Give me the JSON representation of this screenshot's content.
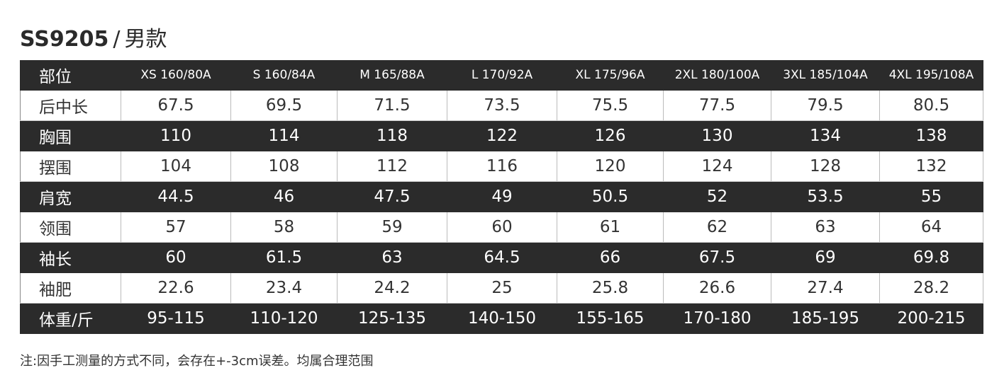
{
  "title": {
    "code": "SS9205",
    "separator": "/",
    "category": "男款"
  },
  "table": {
    "headers": [
      "部位",
      "XS 160/80A",
      "S 160/84A",
      "M  165/88A",
      "L 170/92A",
      "XL 175/96A",
      "2XL 180/100A",
      "3XL 185/104A",
      "4XL 195/108A"
    ],
    "rows": [
      {
        "label": "后中长",
        "dark": false,
        "values": [
          "67.5",
          "69.5",
          "71.5",
          "73.5",
          "75.5",
          "77.5",
          "79.5",
          "80.5"
        ]
      },
      {
        "label": "胸围",
        "dark": true,
        "values": [
          "110",
          "114",
          "118",
          "122",
          "126",
          "130",
          "134",
          "138"
        ]
      },
      {
        "label": "摆围",
        "dark": false,
        "values": [
          "104",
          "108",
          "112",
          "116",
          "120",
          "124",
          "128",
          "132"
        ]
      },
      {
        "label": "肩宽",
        "dark": true,
        "values": [
          "44.5",
          "46",
          "47.5",
          "49",
          "50.5",
          "52",
          "53.5",
          "55"
        ]
      },
      {
        "label": "领围",
        "dark": false,
        "values": [
          "57",
          "58",
          "59",
          "60",
          "61",
          "62",
          "63",
          "64"
        ]
      },
      {
        "label": "袖长",
        "dark": true,
        "values": [
          "60",
          "61.5",
          "63",
          "64.5",
          "66",
          "67.5",
          "69",
          "69.8"
        ]
      },
      {
        "label": "袖肥",
        "dark": false,
        "values": [
          "22.6",
          "23.4",
          "24.2",
          "25",
          "25.8",
          "26.6",
          "27.4",
          "28.2"
        ]
      },
      {
        "label": "体重/斤",
        "dark": true,
        "values": [
          "95-115",
          "110-120",
          "125-135",
          "140-150",
          "155-165",
          "170-180",
          "185-195",
          "200-215"
        ]
      }
    ]
  },
  "note": "注:因手工测量的方式不同，会存在+-3cm误差。均属合理范围",
  "colors": {
    "dark_row": "#2b2b2b",
    "light_row": "#ffffff"
  }
}
